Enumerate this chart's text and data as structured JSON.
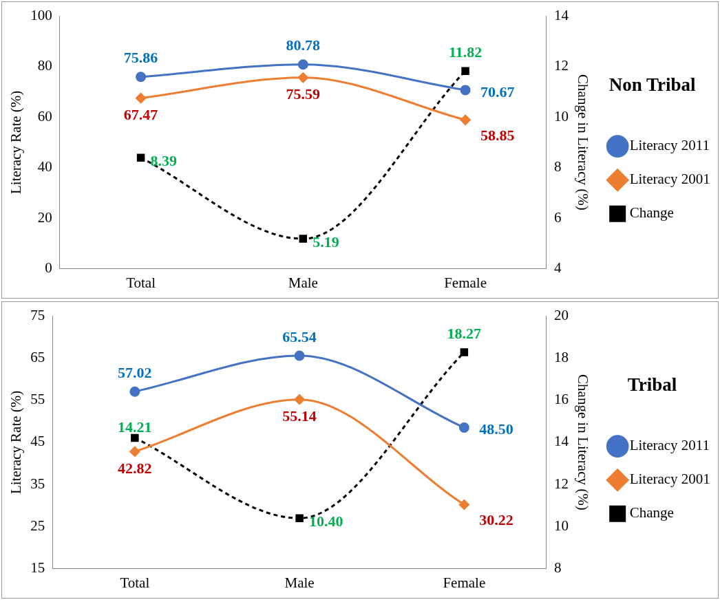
{
  "chart_data": [
    {
      "type": "line",
      "legend_title": "Non Tribal",
      "ylabel": "Literacy Rate (%)",
      "y2label": "Change in Literacy (%)",
      "categories": [
        "Total",
        "Male",
        "Female"
      ],
      "series": [
        {
          "name": "Literacy 2011",
          "color": "#4472c4",
          "marker": "circle",
          "values": [
            75.86,
            80.78,
            70.67
          ],
          "value_labels": [
            "75.86",
            "80.78",
            "70.67"
          ]
        },
        {
          "name": "Literacy 2001",
          "color": "#ed7d31",
          "marker": "diamond",
          "values": [
            67.47,
            75.59,
            58.85
          ],
          "value_labels": [
            "67.47",
            "75.59",
            "58.85"
          ]
        },
        {
          "name": "Change",
          "color": "#000000",
          "marker": "square",
          "line_style": "dashed",
          "axis": "y2",
          "values": [
            8.39,
            5.19,
            11.82
          ],
          "value_labels": [
            "8.39",
            "5.19",
            "11.82"
          ]
        }
      ],
      "ylim": [
        0,
        100
      ],
      "yticks": [
        0,
        20,
        40,
        60,
        80,
        100
      ],
      "y2lim": [
        4,
        14
      ],
      "y2ticks": [
        4,
        6,
        8,
        10,
        12,
        14
      ],
      "grid": false,
      "legend": "right"
    },
    {
      "type": "line",
      "legend_title": "Tribal",
      "ylabel": "Literacy Rate (%)",
      "y2label": "Change in Literacy (%)",
      "categories": [
        "Total",
        "Male",
        "Female"
      ],
      "series": [
        {
          "name": "Literacy 2011",
          "color": "#4472c4",
          "marker": "circle",
          "values": [
            57.02,
            65.54,
            48.5
          ],
          "value_labels": [
            "57.02",
            "65.54",
            "48.50"
          ]
        },
        {
          "name": "Literacy 2001",
          "color": "#ed7d31",
          "marker": "diamond",
          "values": [
            42.82,
            55.14,
            30.22
          ],
          "value_labels": [
            "42.82",
            "55.14",
            "30.22"
          ]
        },
        {
          "name": "Change",
          "color": "#000000",
          "marker": "square",
          "line_style": "dashed",
          "axis": "y2",
          "values": [
            14.21,
            10.4,
            18.27
          ],
          "value_labels": [
            "14.21",
            "10.40",
            "18.27"
          ]
        }
      ],
      "ylim": [
        15,
        75
      ],
      "yticks": [
        15,
        25,
        35,
        45,
        55,
        65,
        75
      ],
      "y2lim": [
        8,
        20
      ],
      "y2ticks": [
        8,
        10,
        12,
        14,
        16,
        18,
        20
      ],
      "grid": false,
      "legend": "right"
    }
  ]
}
